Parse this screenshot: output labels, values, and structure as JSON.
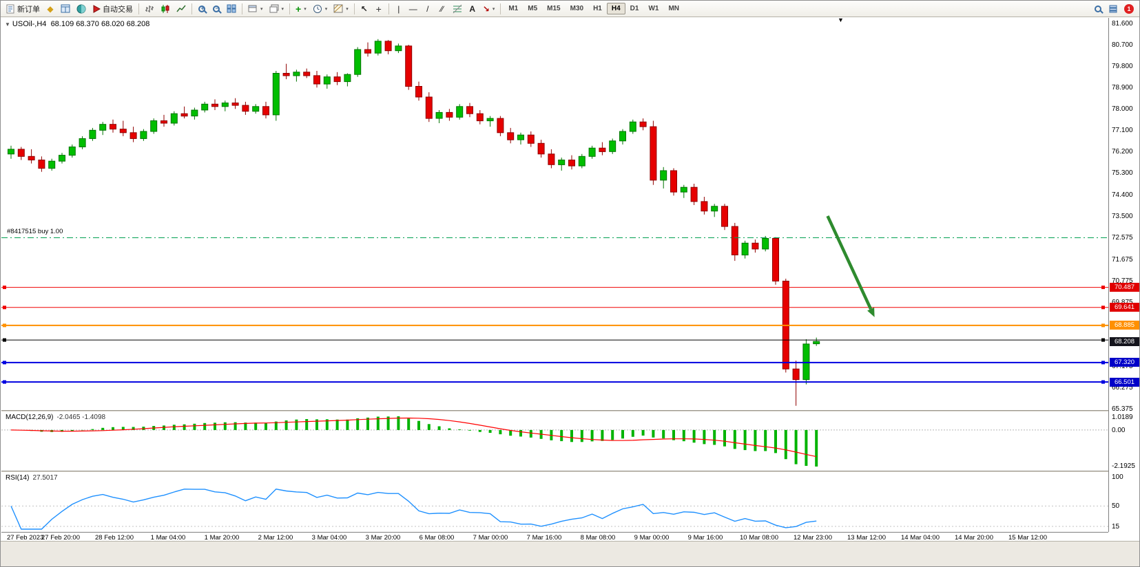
{
  "toolbar": {
    "new_order": "新订单",
    "autotrading": "自动交易",
    "timeframes": [
      "M1",
      "M5",
      "M15",
      "M30",
      "H1",
      "H4",
      "D1",
      "W1",
      "MN"
    ],
    "active_timeframe": "H4",
    "badge_count": "1"
  },
  "icons": {
    "market_watch": "◆",
    "caret": "▾",
    "cursor": "↖",
    "crosshair": "+",
    "vline": "|",
    "hline": "—",
    "trendline": "/",
    "channel": "∕∕",
    "text_tool": "A",
    "arrows_tool": "↘",
    "indicators_plus": "+",
    "down_triangle": "▼"
  },
  "chart": {
    "title_symbol": "USOil-,H4",
    "title_ohlc": "68.109 68.370 68.020 68.208",
    "position_label": "#8417515 buy 1.00",
    "hlines": [
      {
        "name": "buy-position-line",
        "value": 72.575,
        "color": "#00A050",
        "width": 1,
        "dash": "9 4 2 4",
        "handles": false
      },
      {
        "name": "resistance-line-1",
        "value": 70.487,
        "color": "#F00000",
        "width": 1
      },
      {
        "name": "resistance-line-2",
        "value": 69.641,
        "color": "#F00000",
        "width": 1
      },
      {
        "name": "orange-level-line",
        "value": 68.885,
        "color": "#FF9000",
        "width": 2
      },
      {
        "name": "black-level-line",
        "value": 68.27,
        "color": "#000000",
        "width": 1
      },
      {
        "name": "support-line-1",
        "value": 67.32,
        "color": "#0000E0",
        "width": 2
      },
      {
        "name": "support-line-2",
        "value": 66.501,
        "color": "#0000E0",
        "width": 2
      }
    ],
    "badges": [
      {
        "label": "70.487",
        "value": 70.487,
        "bg": "#E00000"
      },
      {
        "label": "69.641",
        "value": 69.641,
        "bg": "#E00000"
      },
      {
        "label": "68.885",
        "value": 68.885,
        "bg": "#FF9000"
      },
      {
        "label": "68.208",
        "value": 68.208,
        "bg": "#14141c"
      },
      {
        "label": "67.320",
        "value": 67.32,
        "bg": "#0000C8"
      },
      {
        "label": "66.501",
        "value": 66.501,
        "bg": "#0000C8"
      }
    ],
    "arrow": {
      "from_bar": 80.1,
      "from_price": 73.49,
      "to_bar": 84.7,
      "to_price": 69.23,
      "color": "#2E8B2E"
    }
  },
  "chart_data": {
    "type": "candlestick",
    "symbol": "USOil-",
    "timeframe": "H4",
    "title": "USOil-,H4 68.109 68.370 68.020 68.208",
    "ylim": [
      65.375,
      81.6
    ],
    "y_ticks": [
      {
        "label": "81.600",
        "value": 81.6
      },
      {
        "label": "80.700",
        "value": 80.7
      },
      {
        "label": "79.800",
        "value": 79.8
      },
      {
        "label": "78.900",
        "value": 78.9
      },
      {
        "label": "78.000",
        "value": 78.0
      },
      {
        "label": "77.100",
        "value": 77.1
      },
      {
        "label": "76.200",
        "value": 76.2
      },
      {
        "label": "75.300",
        "value": 75.3
      },
      {
        "label": "74.400",
        "value": 74.4
      },
      {
        "label": "73.500",
        "value": 73.5
      },
      {
        "label": "72.575",
        "value": 72.575
      },
      {
        "label": "71.675",
        "value": 71.675
      },
      {
        "label": "70.775",
        "value": 70.775
      },
      {
        "label": "69.875",
        "value": 69.875
      },
      {
        "label": "68.975",
        "value": 68.975
      },
      {
        "label": "67.175",
        "value": 67.175
      },
      {
        "label": "66.275",
        "value": 66.275
      },
      {
        "label": "65.375",
        "value": 65.375
      }
    ],
    "x_labels": [
      "27 Feb 2023",
      "27 Feb 20:00",
      "28 Feb 12:00",
      "1 Mar 04:00",
      "1 Mar 20:00",
      "2 Mar 12:00",
      "3 Mar 04:00",
      "3 Mar 20:00",
      "6 Mar 08:00",
      "7 Mar 00:00",
      "7 Mar 16:00",
      "8 Mar 08:00",
      "9 Mar 00:00",
      "9 Mar 16:00",
      "10 Mar 08:00",
      "12 Mar 23:00",
      "13 Mar 12:00",
      "14 Mar 04:00",
      "14 Mar 20:00",
      "15 Mar 12:00"
    ],
    "candles": [
      [
        76.1,
        76.45,
        75.9,
        76.3
      ],
      [
        76.3,
        76.4,
        75.85,
        76.0
      ],
      [
        76.0,
        76.3,
        75.7,
        75.85
      ],
      [
        75.85,
        76.0,
        75.35,
        75.5
      ],
      [
        75.5,
        75.9,
        75.4,
        75.8
      ],
      [
        75.8,
        76.15,
        75.7,
        76.05
      ],
      [
        76.05,
        76.5,
        75.95,
        76.4
      ],
      [
        76.4,
        76.85,
        76.3,
        76.75
      ],
      [
        76.75,
        77.2,
        76.65,
        77.1
      ],
      [
        77.1,
        77.45,
        76.9,
        77.35
      ],
      [
        77.35,
        77.55,
        77.0,
        77.15
      ],
      [
        77.15,
        77.5,
        76.85,
        77.0
      ],
      [
        77.0,
        77.25,
        76.6,
        76.75
      ],
      [
        76.75,
        77.15,
        76.65,
        77.05
      ],
      [
        77.05,
        77.6,
        76.95,
        77.5
      ],
      [
        77.5,
        77.75,
        77.25,
        77.4
      ],
      [
        77.4,
        77.9,
        77.3,
        77.8
      ],
      [
        77.8,
        78.1,
        77.6,
        77.7
      ],
      [
        77.7,
        78.05,
        77.55,
        77.95
      ],
      [
        77.95,
        78.3,
        77.85,
        78.2
      ],
      [
        78.2,
        78.4,
        77.95,
        78.1
      ],
      [
        78.1,
        78.35,
        77.9,
        78.25
      ],
      [
        78.25,
        78.45,
        78.0,
        78.15
      ],
      [
        78.15,
        78.3,
        77.75,
        77.9
      ],
      [
        77.9,
        78.2,
        77.8,
        78.1
      ],
      [
        78.1,
        78.3,
        77.6,
        77.75
      ],
      [
        77.75,
        79.6,
        77.5,
        79.5
      ],
      [
        79.5,
        79.9,
        79.25,
        79.4
      ],
      [
        79.4,
        79.65,
        79.15,
        79.55
      ],
      [
        79.55,
        79.7,
        79.3,
        79.4
      ],
      [
        79.4,
        79.6,
        78.9,
        79.05
      ],
      [
        79.05,
        79.45,
        78.85,
        79.35
      ],
      [
        79.35,
        79.55,
        79.0,
        79.15
      ],
      [
        79.15,
        79.5,
        78.95,
        79.45
      ],
      [
        79.45,
        80.6,
        79.35,
        80.5
      ],
      [
        80.5,
        80.8,
        80.2,
        80.35
      ],
      [
        80.35,
        80.94,
        80.25,
        80.85
      ],
      [
        80.85,
        80.9,
        80.3,
        80.45
      ],
      [
        80.45,
        80.75,
        80.35,
        80.65
      ],
      [
        80.65,
        80.7,
        78.8,
        78.95
      ],
      [
        78.95,
        79.15,
        78.35,
        78.5
      ],
      [
        78.5,
        78.7,
        77.45,
        77.6
      ],
      [
        77.6,
        77.95,
        77.4,
        77.85
      ],
      [
        77.85,
        78.0,
        77.5,
        77.65
      ],
      [
        77.65,
        78.2,
        77.55,
        78.1
      ],
      [
        78.1,
        78.25,
        77.65,
        77.8
      ],
      [
        77.8,
        77.95,
        77.35,
        77.5
      ],
      [
        77.5,
        77.7,
        77.25,
        77.6
      ],
      [
        77.6,
        77.7,
        76.85,
        77.0
      ],
      [
        77.0,
        77.2,
        76.55,
        76.7
      ],
      [
        76.7,
        77.0,
        76.5,
        76.9
      ],
      [
        76.9,
        77.05,
        76.4,
        76.55
      ],
      [
        76.55,
        76.7,
        75.95,
        76.1
      ],
      [
        76.1,
        76.3,
        75.5,
        75.65
      ],
      [
        75.65,
        75.95,
        75.4,
        75.85
      ],
      [
        75.85,
        76.05,
        75.45,
        75.6
      ],
      [
        75.6,
        76.1,
        75.5,
        76.0
      ],
      [
        76.0,
        76.45,
        75.9,
        76.35
      ],
      [
        76.35,
        76.6,
        76.05,
        76.2
      ],
      [
        76.2,
        76.75,
        76.1,
        76.65
      ],
      [
        76.65,
        77.15,
        76.5,
        77.05
      ],
      [
        77.05,
        77.55,
        76.95,
        77.45
      ],
      [
        77.45,
        77.6,
        77.1,
        77.25
      ],
      [
        77.25,
        77.5,
        74.8,
        75.0
      ],
      [
        75.0,
        75.55,
        74.65,
        75.4
      ],
      [
        75.4,
        75.5,
        74.35,
        74.5
      ],
      [
        74.5,
        74.8,
        74.25,
        74.7
      ],
      [
        74.7,
        74.85,
        73.95,
        74.1
      ],
      [
        74.1,
        74.3,
        73.55,
        73.7
      ],
      [
        73.7,
        74.0,
        73.45,
        73.9
      ],
      [
        73.9,
        74.0,
        72.9,
        73.05
      ],
      [
        73.05,
        73.2,
        71.6,
        71.85
      ],
      [
        71.85,
        72.45,
        71.7,
        72.35
      ],
      [
        72.35,
        72.5,
        71.95,
        72.1
      ],
      [
        72.1,
        72.65,
        72.0,
        72.55
      ],
      [
        72.55,
        72.6,
        70.6,
        70.75
      ],
      [
        70.75,
        70.85,
        66.9,
        67.05
      ],
      [
        67.05,
        67.4,
        65.5,
        66.6
      ],
      [
        66.6,
        68.3,
        66.4,
        68.1
      ],
      [
        68.109,
        68.37,
        68.02,
        68.208
      ]
    ],
    "indicators": [
      {
        "name": "MACD",
        "params": [
          12,
          26,
          9
        ],
        "current_values": [
          -2.0465,
          -1.4098
        ],
        "scale_labels": [
          "1.0189",
          "0.00",
          "-2.1925"
        ]
      },
      {
        "name": "RSI",
        "params": [
          14
        ],
        "current_value": 27.5017,
        "scale_labels": [
          "100",
          "50",
          "15"
        ]
      }
    ]
  },
  "macd_panel": {
    "title": "MACD(12,26,9)",
    "values": "-2.0465 -1.4098",
    "scale_labels": [
      "1.0189",
      "0.00",
      "-2.1925"
    ]
  },
  "rsi_panel": {
    "title": "RSI(14)",
    "values": "27.5017",
    "scale_labels": [
      "100",
      "50",
      "15"
    ]
  },
  "colors": {
    "bull": "#00BE00",
    "bull_border": "#007400",
    "bear": "#E60000",
    "bear_border": "#8F0000",
    "macd_hist": "#00B300",
    "macd_signal": "#FF0000",
    "rsi_line": "#1E90FF",
    "buy_line": "#00A050",
    "arrow": "#2E8B2E"
  }
}
